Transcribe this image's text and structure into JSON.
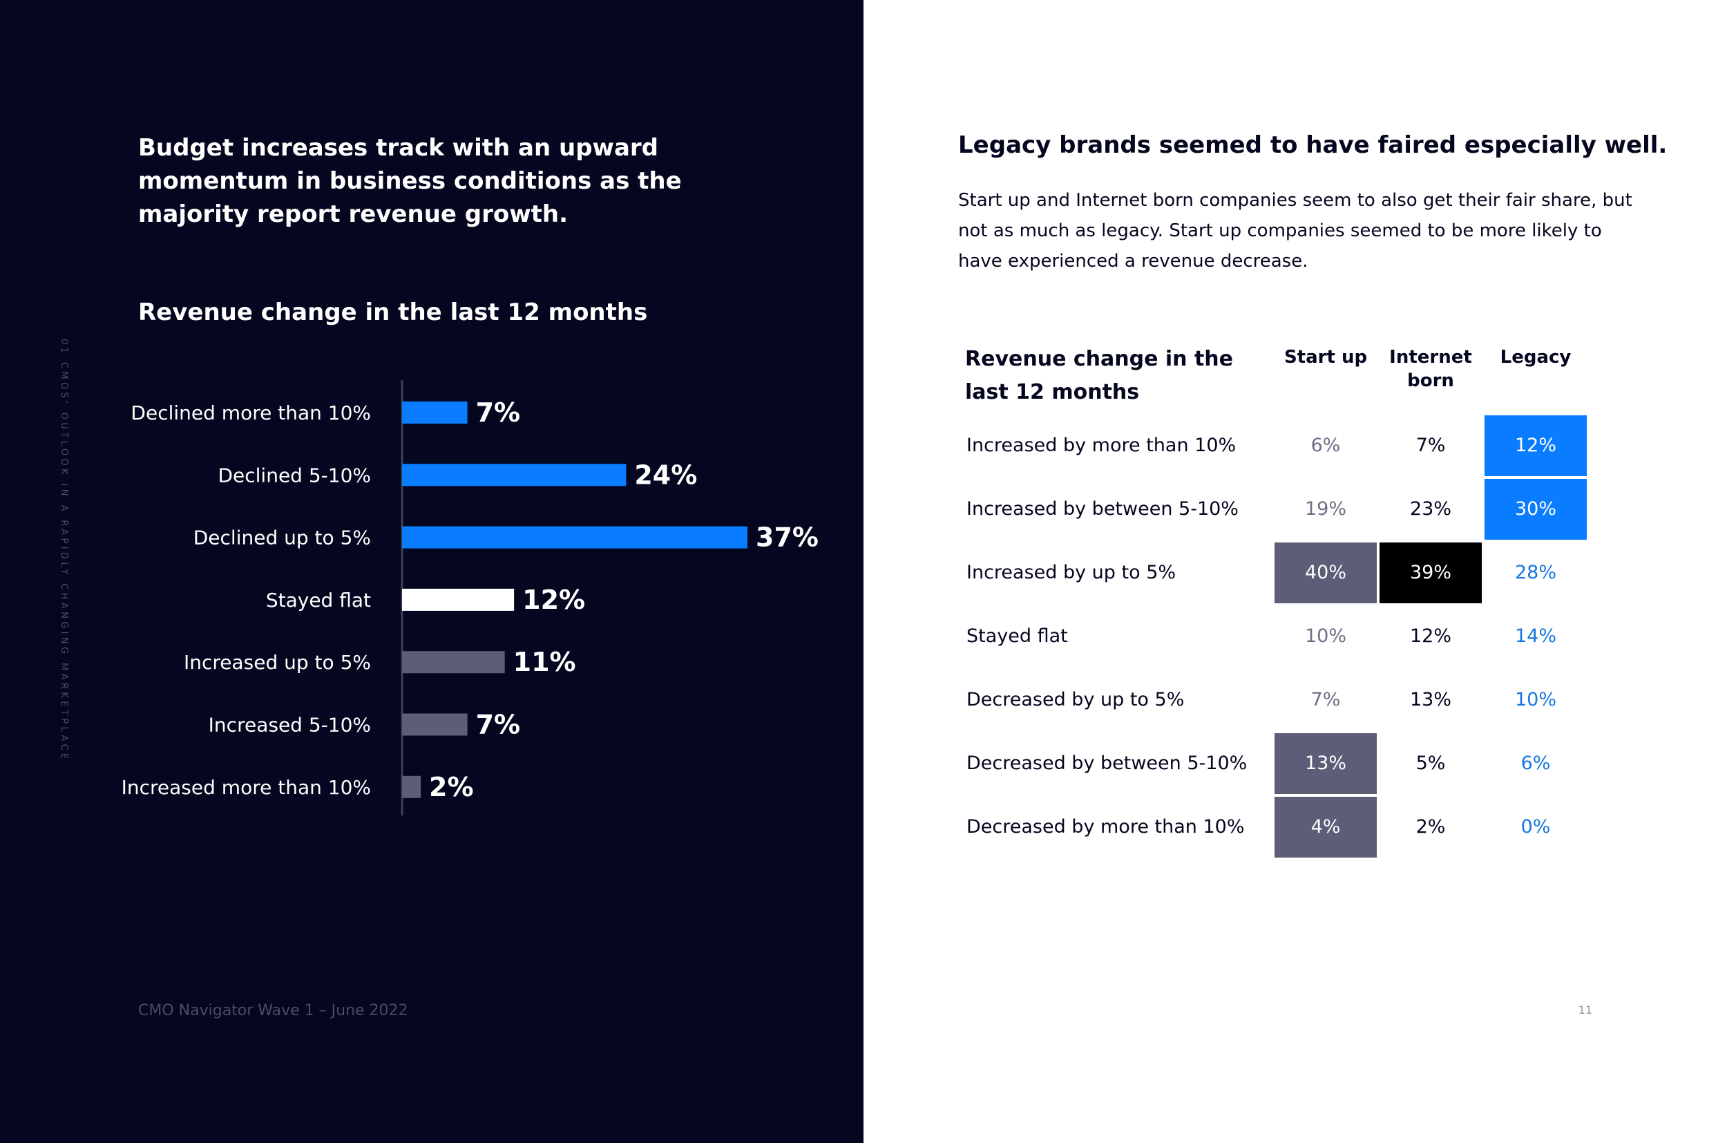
{
  "left": {
    "side_label": "01 CMOs' OUTLOOK IN A RAPIDLY CHANGING MARKETPLACE",
    "heading": "Budget increases track with an upward momentum in business conditions as the majority report revenue growth.",
    "footer": "CMO Navigator Wave 1 – June 2022"
  },
  "right": {
    "heading": "Legacy brands seemed to have faired especially well.",
    "body": "Start up and Internet born companies seem to also get their fair share, but not as much as legacy. Start up companies seemed to be more likely to have experienced a revenue decrease.",
    "page_number": "11"
  },
  "colors": {
    "dark_bg": "#05061f",
    "blue": "#0a7cff",
    "white": "#ffffff",
    "gray": "#5c5d77",
    "black": "#000000",
    "blue_text": "#1877e0"
  },
  "chart_data": [
    {
      "type": "bar",
      "orientation": "horizontal",
      "title": "Revenue change in the last 12 months",
      "categories": [
        "Declined more than 10%",
        "Declined 5-10%",
        "Declined up to 5%",
        "Stayed flat",
        "Increased up to 5%",
        "Increased 5-10%",
        "Increased more than 10%"
      ],
      "values": [
        7,
        24,
        37,
        12,
        11,
        7,
        2
      ],
      "value_labels": [
        "7%",
        "24%",
        "37%",
        "12%",
        "11%",
        "7%",
        "2%"
      ],
      "bar_colors": [
        "#0a7cff",
        "#0a7cff",
        "#0a7cff",
        "#ffffff",
        "#5c5d77",
        "#5c5d77",
        "#5c5d77"
      ],
      "xlim": [
        0,
        37
      ]
    },
    {
      "type": "table",
      "title": "Revenue change in the last 12 months",
      "columns": [
        "Start up",
        "Internet born",
        "Legacy"
      ],
      "rows": [
        {
          "label": "Increased by more than 10%",
          "values": [
            "6%",
            "7%",
            "12%"
          ],
          "highlight": [
            "none",
            "none",
            "blue"
          ]
        },
        {
          "label": "Increased by between 5-10%",
          "values": [
            "19%",
            "23%",
            "30%"
          ],
          "highlight": [
            "none",
            "none",
            "blue"
          ]
        },
        {
          "label": "Increased by up to 5%",
          "values": [
            "40%",
            "39%",
            "28%"
          ],
          "highlight": [
            "gray",
            "black",
            "none"
          ]
        },
        {
          "label": "Stayed flat",
          "values": [
            "10%",
            "12%",
            "14%"
          ],
          "highlight": [
            "none",
            "none",
            "none"
          ]
        },
        {
          "label": "Decreased by up to 5%",
          "values": [
            "7%",
            "13%",
            "10%"
          ],
          "highlight": [
            "none",
            "none",
            "none"
          ]
        },
        {
          "label": "Decreased by between 5-10%",
          "values": [
            "13%",
            "5%",
            "6%"
          ],
          "highlight": [
            "gray",
            "none",
            "none"
          ]
        },
        {
          "label": "Decreased by more than 10%",
          "values": [
            "4%",
            "2%",
            "0%"
          ],
          "highlight": [
            "gray",
            "none",
            "none"
          ]
        }
      ],
      "column_text_colors": [
        "#6e6f85",
        "#05061f",
        "#1877e0"
      ]
    }
  ]
}
